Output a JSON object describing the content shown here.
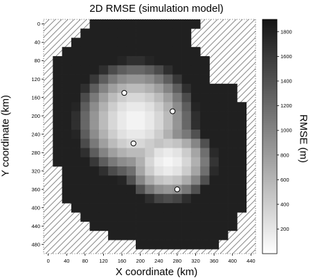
{
  "chart_data": {
    "type": "heatmap",
    "title": "2D RMSE (simulation model)",
    "xlabel": "X coordinate (km)",
    "ylabel": "Y coordinate (km)",
    "colorbar_label": "RMSE (m)",
    "xlim": [
      -10,
      450
    ],
    "ylim": [
      500,
      -10
    ],
    "x_ticks": [
      0,
      40,
      80,
      120,
      160,
      200,
      240,
      280,
      320,
      360,
      400,
      440
    ],
    "y_ticks": [
      0,
      40,
      80,
      120,
      160,
      200,
      240,
      280,
      320,
      360,
      400,
      440,
      480
    ],
    "colorbar_range": [
      0,
      1900
    ],
    "colorbar_ticks": [
      200,
      400,
      600,
      800,
      1000,
      1200,
      1400,
      1600,
      1800
    ],
    "colormap": "gray (white = low, black = high)",
    "cell_size_km": 20,
    "outside_region": "hatched",
    "grid_x_centers": [
      0,
      20,
      40,
      60,
      80,
      100,
      120,
      140,
      160,
      180,
      200,
      220,
      240,
      260,
      280,
      300,
      320,
      340,
      360,
      380,
      400,
      420,
      440
    ],
    "grid_y_centers": [
      0,
      20,
      40,
      60,
      80,
      100,
      120,
      140,
      160,
      180,
      200,
      220,
      240,
      260,
      280,
      300,
      320,
      340,
      360,
      380,
      400,
      420,
      440,
      460,
      480
    ],
    "row_extents": [
      [
        5,
        16
      ],
      [
        4,
        15
      ],
      [
        3,
        15
      ],
      [
        2,
        16
      ],
      [
        1,
        17
      ],
      [
        1,
        17
      ],
      [
        1,
        17
      ],
      [
        1,
        20
      ],
      [
        1,
        20
      ],
      [
        1,
        21
      ],
      [
        1,
        21
      ],
      [
        1,
        21
      ],
      [
        1,
        21
      ],
      [
        1,
        21
      ],
      [
        1,
        21
      ],
      [
        1,
        21
      ],
      [
        2,
        21
      ],
      [
        2,
        21
      ],
      [
        2,
        21
      ],
      [
        2,
        21
      ],
      [
        3,
        21
      ],
      [
        4,
        20
      ],
      [
        5,
        20
      ],
      [
        7,
        19
      ],
      [
        10,
        18
      ]
    ],
    "rmse_model": {
      "base": 1800,
      "centers": [
        [
          190,
          210
        ],
        [
          260,
          300
        ]
      ],
      "scales": [
        [
          135,
          135
        ],
        [
          105,
          90
        ]
      ],
      "min": 80,
      "edge_max": 1800
    },
    "stations": [
      {
        "x": 165,
        "y": 150
      },
      {
        "x": 270,
        "y": 190
      },
      {
        "x": 185,
        "y": 260
      },
      {
        "x": 280,
        "y": 360
      }
    ]
  }
}
